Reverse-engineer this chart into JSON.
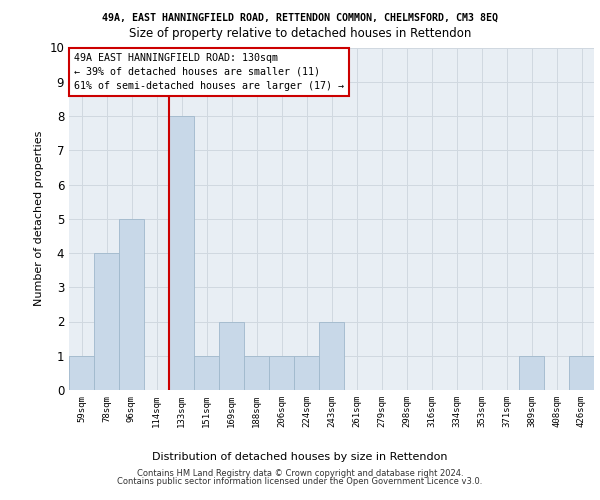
{
  "title1": "49A, EAST HANNINGFIELD ROAD, RETTENDON COMMON, CHELMSFORD, CM3 8EQ",
  "title2": "Size of property relative to detached houses in Rettendon",
  "xlabel": "Distribution of detached houses by size in Rettendon",
  "ylabel": "Number of detached properties",
  "bin_labels": [
    "59sqm",
    "78sqm",
    "96sqm",
    "114sqm",
    "133sqm",
    "151sqm",
    "169sqm",
    "188sqm",
    "206sqm",
    "224sqm",
    "243sqm",
    "261sqm",
    "279sqm",
    "298sqm",
    "316sqm",
    "334sqm",
    "353sqm",
    "371sqm",
    "389sqm",
    "408sqm",
    "426sqm"
  ],
  "bar_values": [
    1,
    4,
    5,
    0,
    8,
    1,
    2,
    1,
    1,
    1,
    2,
    0,
    0,
    0,
    0,
    0,
    0,
    0,
    1,
    0,
    1
  ],
  "bar_color": "#c8d8e8",
  "bar_edgecolor": "#a0b8cc",
  "red_line_bin": 4,
  "annotation_line1": "49A EAST HANNINGFIELD ROAD: 130sqm",
  "annotation_line2": "← 39% of detached houses are smaller (11)",
  "annotation_line3": "61% of semi-detached houses are larger (17) →",
  "ylim": [
    0,
    10
  ],
  "yticks": [
    0,
    1,
    2,
    3,
    4,
    5,
    6,
    7,
    8,
    9,
    10
  ],
  "red_line_color": "#cc0000",
  "grid_color": "#d0d8e0",
  "background_color": "#e8eef4",
  "footer1": "Contains HM Land Registry data © Crown copyright and database right 2024.",
  "footer2": "Contains public sector information licensed under the Open Government Licence v3.0."
}
